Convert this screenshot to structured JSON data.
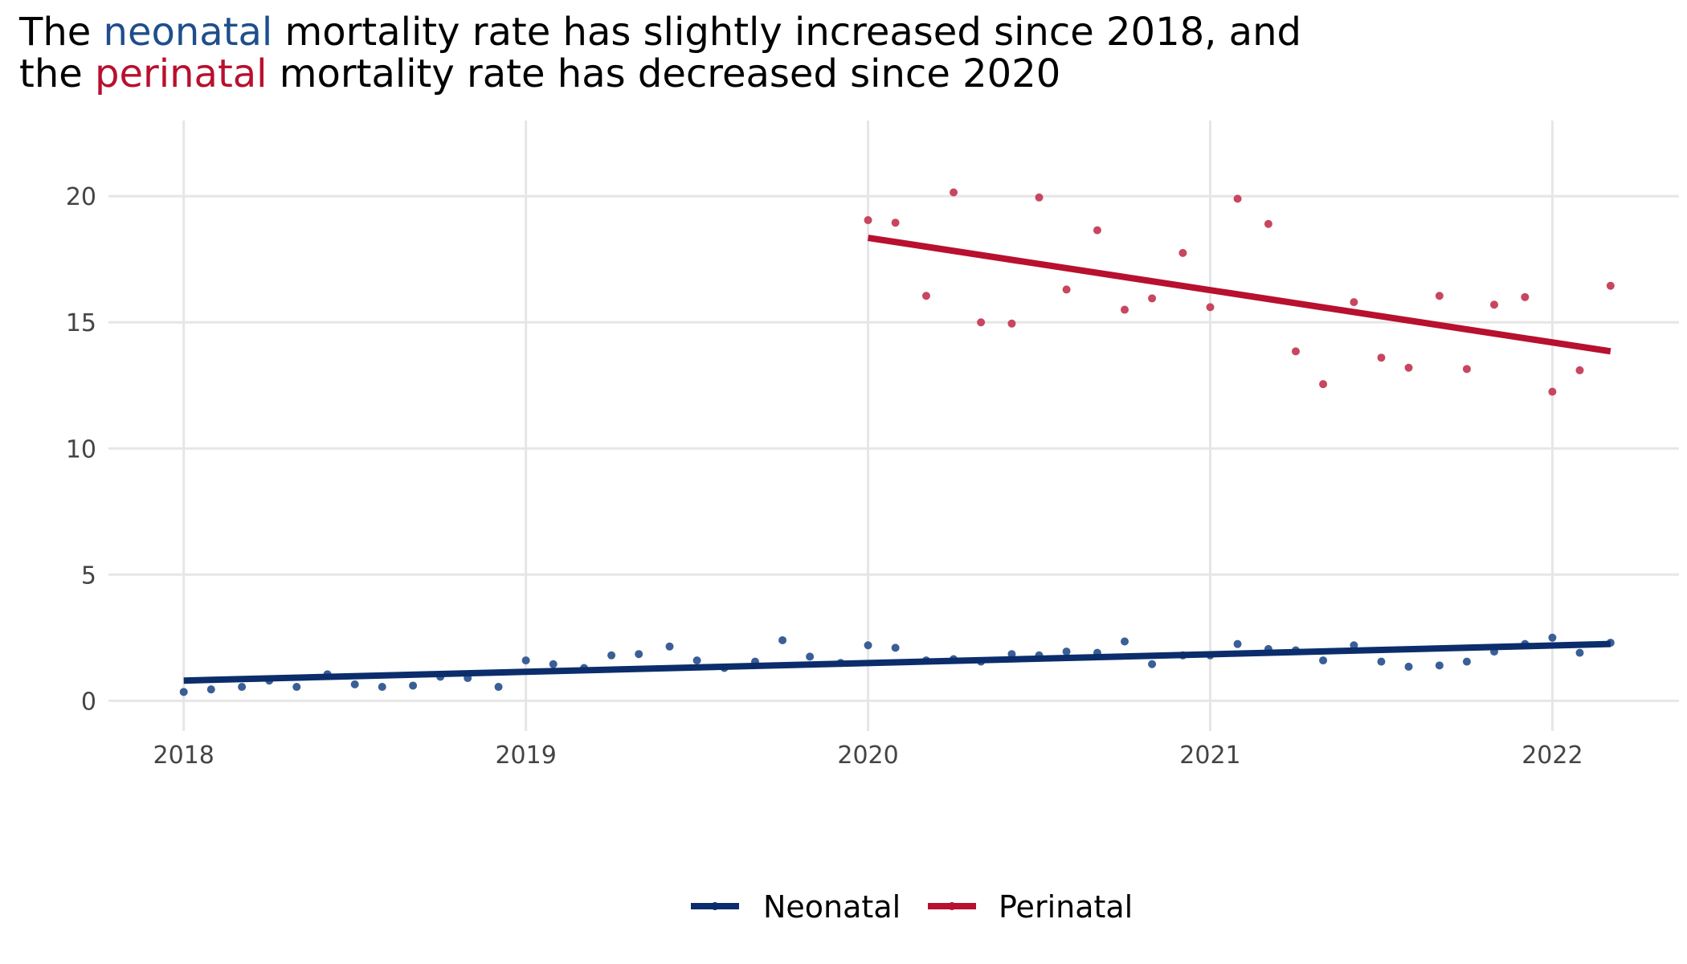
{
  "title": {
    "line1_pre": "The ",
    "line1_neo": "neonatal",
    "line1_post": " mortality rate has slightly increased since 2018, and",
    "line2_pre": "the ",
    "line2_peri": "perinatal",
    "line2_post": " mortality rate has decreased since 2020"
  },
  "colors": {
    "neonatal": "#0b2d6b",
    "perinatal": "#b8102f",
    "grid": "#e6e6e6"
  },
  "chart_data": {
    "type": "scatter",
    "title": "The neonatal mortality rate has slightly increased since 2018, and the perinatal mortality rate has decreased since 2020",
    "xlabel": "",
    "ylabel": "",
    "xlim": [
      2017.78,
      2022.37
    ],
    "ylim": [
      -1.2,
      23.0
    ],
    "x_ticks": [
      2018,
      2019,
      2020,
      2021,
      2022
    ],
    "x_tick_labels": [
      "2018",
      "2019",
      "2020",
      "2021",
      "2022"
    ],
    "y_ticks": [
      0,
      5,
      10,
      15,
      20
    ],
    "y_tick_labels": [
      "0",
      "5",
      "10",
      "15",
      "20"
    ],
    "grid": true,
    "legend_position": "bottom",
    "series": [
      {
        "name": "Neonatal",
        "points": [
          [
            2018.0,
            0.35
          ],
          [
            2018.08,
            0.45
          ],
          [
            2018.17,
            0.55
          ],
          [
            2018.25,
            0.8
          ],
          [
            2018.33,
            0.55
          ],
          [
            2018.42,
            1.05
          ],
          [
            2018.5,
            0.65
          ],
          [
            2018.58,
            0.55
          ],
          [
            2018.67,
            0.6
          ],
          [
            2018.75,
            0.95
          ],
          [
            2018.83,
            0.9
          ],
          [
            2018.92,
            0.55
          ],
          [
            2019.0,
            1.6
          ],
          [
            2019.08,
            1.45
          ],
          [
            2019.17,
            1.3
          ],
          [
            2019.25,
            1.8
          ],
          [
            2019.33,
            1.85
          ],
          [
            2019.42,
            2.15
          ],
          [
            2019.5,
            1.6
          ],
          [
            2019.58,
            1.3
          ],
          [
            2019.67,
            1.55
          ],
          [
            2019.75,
            2.4
          ],
          [
            2019.83,
            1.75
          ],
          [
            2019.92,
            1.5
          ],
          [
            2020.0,
            2.2
          ],
          [
            2020.08,
            2.1
          ],
          [
            2020.17,
            1.6
          ],
          [
            2020.25,
            1.65
          ],
          [
            2020.33,
            1.55
          ],
          [
            2020.42,
            1.85
          ],
          [
            2020.5,
            1.8
          ],
          [
            2020.58,
            1.95
          ],
          [
            2020.67,
            1.9
          ],
          [
            2020.75,
            2.35
          ],
          [
            2020.83,
            1.45
          ],
          [
            2020.92,
            1.8
          ],
          [
            2021.0,
            1.8
          ],
          [
            2021.08,
            2.25
          ],
          [
            2021.17,
            2.05
          ],
          [
            2021.25,
            2.0
          ],
          [
            2021.33,
            1.6
          ],
          [
            2021.42,
            2.2
          ],
          [
            2021.5,
            1.55
          ],
          [
            2021.58,
            1.35
          ],
          [
            2021.67,
            1.4
          ],
          [
            2021.75,
            1.55
          ],
          [
            2021.83,
            1.95
          ],
          [
            2021.92,
            2.25
          ],
          [
            2022.0,
            2.5
          ],
          [
            2022.08,
            1.9
          ],
          [
            2022.17,
            2.3
          ]
        ],
        "trend": [
          [
            2018.0,
            0.8
          ],
          [
            2022.17,
            2.25
          ]
        ]
      },
      {
        "name": "Perinatal",
        "points": [
          [
            2020.0,
            19.05
          ],
          [
            2020.08,
            18.95
          ],
          [
            2020.17,
            16.05
          ],
          [
            2020.25,
            20.15
          ],
          [
            2020.33,
            15.0
          ],
          [
            2020.42,
            14.95
          ],
          [
            2020.5,
            19.95
          ],
          [
            2020.58,
            16.3
          ],
          [
            2020.67,
            18.65
          ],
          [
            2020.75,
            15.5
          ],
          [
            2020.83,
            15.95
          ],
          [
            2020.92,
            17.75
          ],
          [
            2021.0,
            15.6
          ],
          [
            2021.08,
            19.9
          ],
          [
            2021.17,
            18.9
          ],
          [
            2021.25,
            13.85
          ],
          [
            2021.33,
            12.55
          ],
          [
            2021.42,
            15.8
          ],
          [
            2021.5,
            13.6
          ],
          [
            2021.58,
            13.2
          ],
          [
            2021.67,
            16.05
          ],
          [
            2021.75,
            13.15
          ],
          [
            2021.83,
            15.7
          ],
          [
            2021.92,
            16.0
          ],
          [
            2022.0,
            12.25
          ],
          [
            2022.08,
            13.1
          ],
          [
            2022.17,
            16.45
          ]
        ],
        "trend": [
          [
            2020.0,
            18.35
          ],
          [
            2022.17,
            13.85
          ]
        ]
      }
    ]
  }
}
